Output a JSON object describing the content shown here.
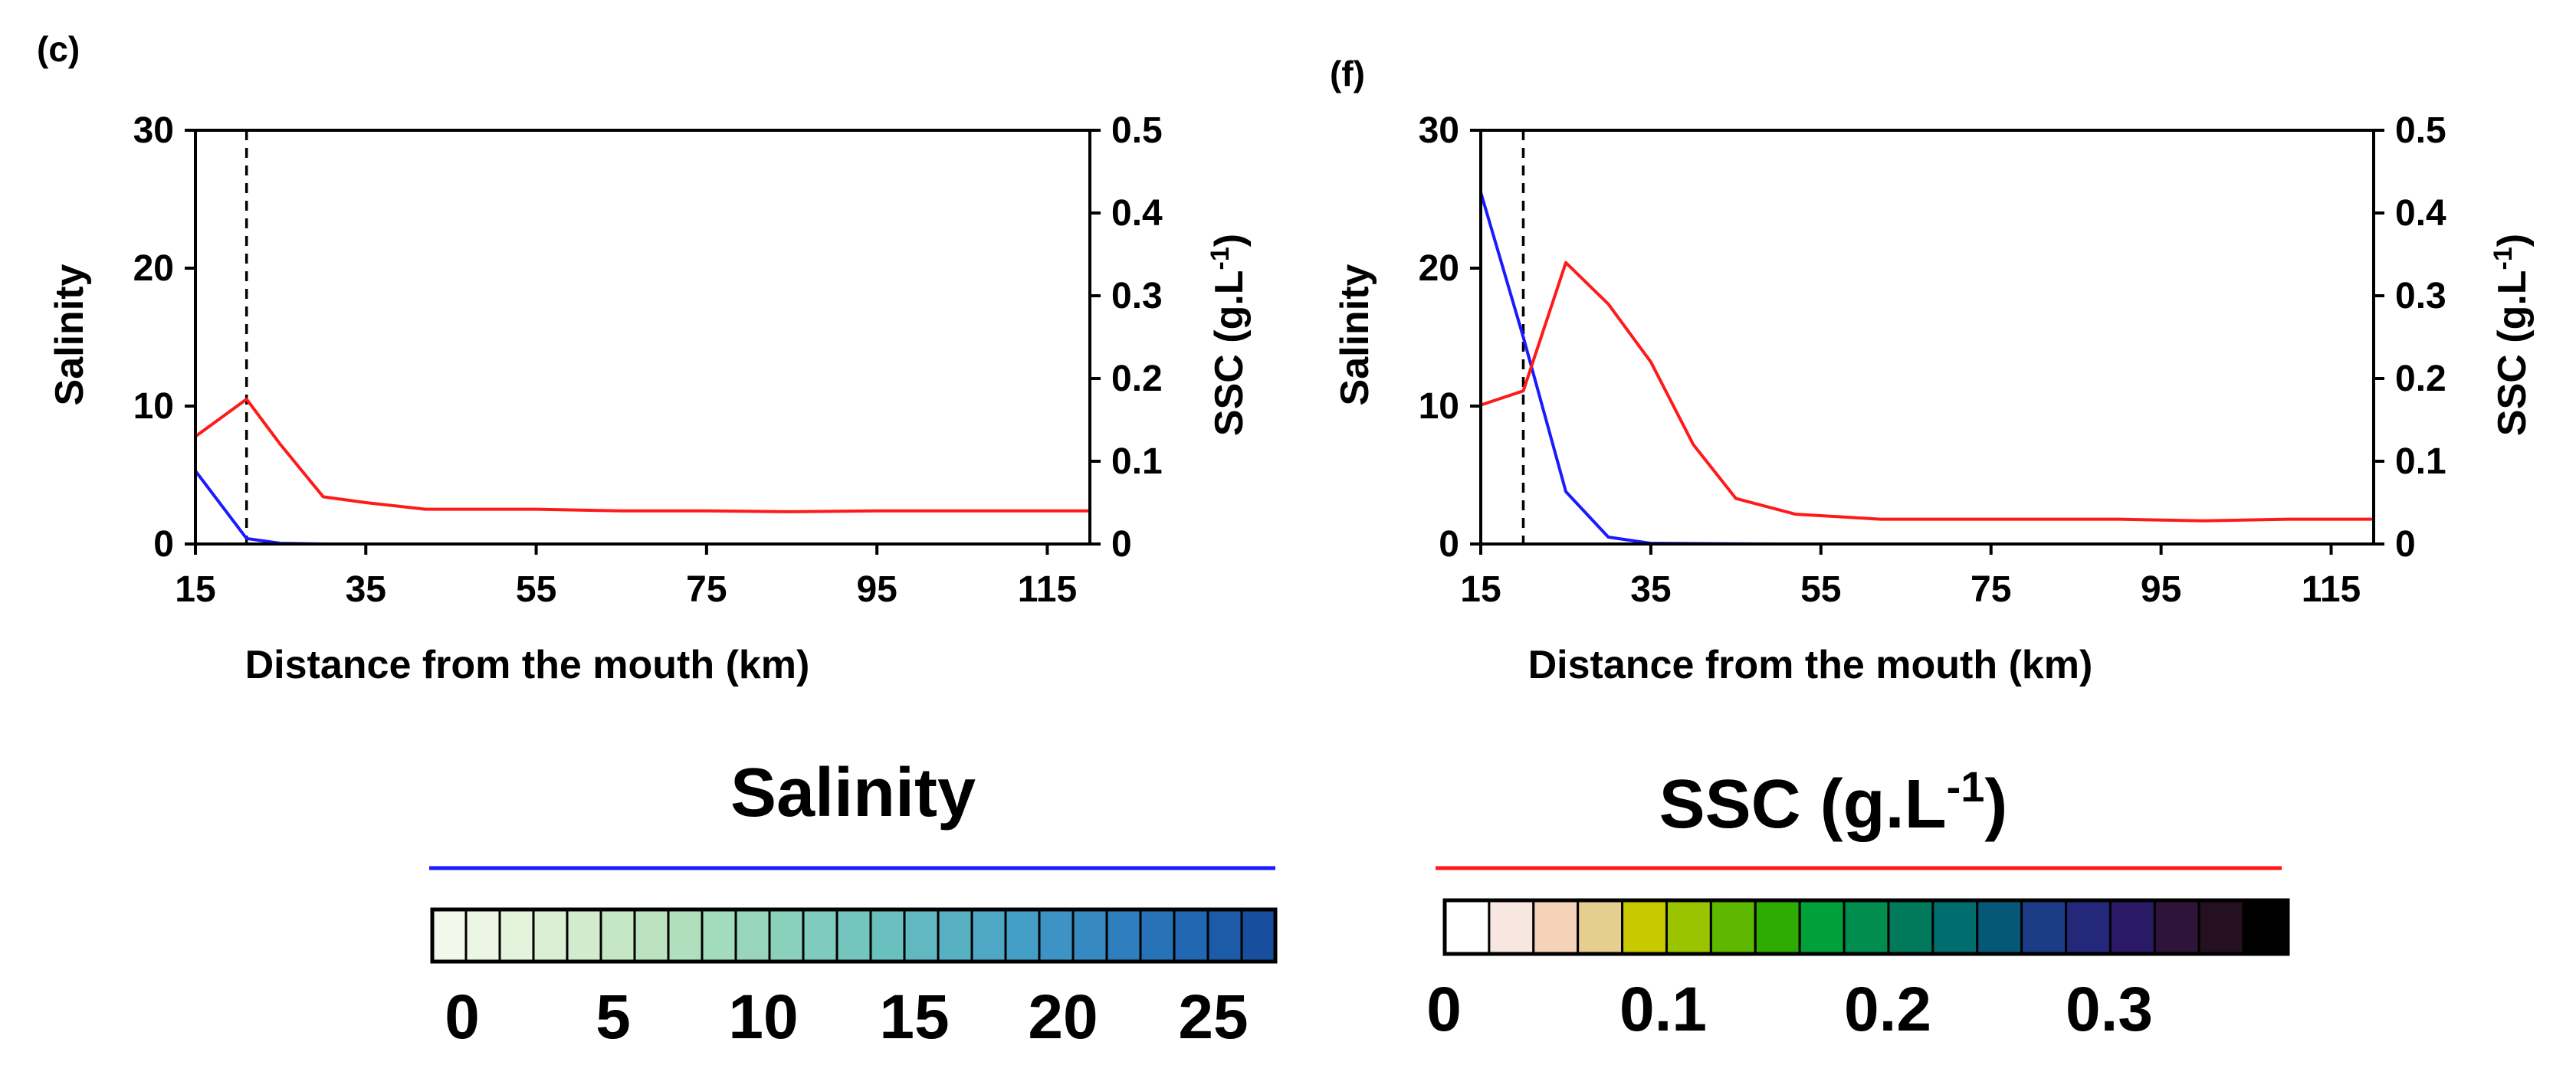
{
  "chart_data": [
    {
      "panel": "(c)",
      "type": "line",
      "xlabel": "Distance from the mouth (km)",
      "ylabel_left": "Salinity",
      "ylabel_right": "SSC (g.L",
      "ylabel_right_sup": "-1",
      "ylabel_right_suffix": ")",
      "xlim": [
        15,
        120
      ],
      "xticks": [
        "15",
        "35",
        "55",
        "75",
        "95",
        "115"
      ],
      "ylim_left": [
        0,
        30
      ],
      "yticks_left": [
        "0",
        "10",
        "20",
        "30"
      ],
      "ylim_right": [
        0,
        0.5
      ],
      "yticks_right": [
        "0",
        "0.1",
        "0.2",
        "0.3",
        "0.4",
        "0.5"
      ],
      "vline_x": 21,
      "series": [
        {
          "name": "Salinity",
          "axis": "left",
          "color": "#1a1aff",
          "x": [
            15,
            21,
            25,
            30,
            40,
            60,
            80,
            100,
            120
          ],
          "y": [
            5.3,
            0.4,
            0.05,
            0,
            0,
            0,
            0,
            0,
            0
          ]
        },
        {
          "name": "SSC (g.L-1)",
          "axis": "right",
          "color": "#ff1a1a",
          "x": [
            15,
            21,
            25,
            30,
            35,
            42,
            55,
            65,
            75,
            85,
            95,
            105,
            120
          ],
          "y": [
            0.13,
            0.175,
            0.12,
            0.057,
            0.05,
            0.042,
            0.042,
            0.04,
            0.04,
            0.039,
            0.04,
            0.04,
            0.04
          ]
        }
      ]
    },
    {
      "panel": "(f)",
      "type": "line",
      "xlabel": "Distance from the mouth (km)",
      "ylabel_left": "Salinity",
      "ylabel_right": "SSC (g.L",
      "ylabel_right_sup": "-1",
      "ylabel_right_suffix": ")",
      "xlim": [
        15,
        120
      ],
      "xticks": [
        "15",
        "35",
        "55",
        "75",
        "95",
        "115"
      ],
      "ylim_left": [
        0,
        30
      ],
      "yticks_left": [
        "0",
        "10",
        "20",
        "30"
      ],
      "ylim_right": [
        0,
        0.5
      ],
      "yticks_right": [
        "0",
        "0.1",
        "0.2",
        "0.3",
        "0.4",
        "0.5"
      ],
      "vline_x": 20,
      "series": [
        {
          "name": "Salinity",
          "axis": "left",
          "color": "#1a1aff",
          "x": [
            15,
            20,
            25,
            30,
            35,
            50,
            70,
            90,
            120
          ],
          "y": [
            25.5,
            15,
            3.8,
            0.5,
            0.05,
            0,
            0,
            0,
            0
          ]
        },
        {
          "name": "SSC (g.L-1)",
          "axis": "right",
          "color": "#ff1a1a",
          "x": [
            15,
            20,
            25,
            30,
            35,
            40,
            45,
            52,
            62,
            75,
            90,
            100,
            110,
            120
          ],
          "y": [
            0.168,
            0.185,
            0.34,
            0.29,
            0.22,
            0.12,
            0.055,
            0.036,
            0.03,
            0.03,
            0.03,
            0.028,
            0.03,
            0.03
          ]
        }
      ]
    }
  ],
  "legends": {
    "salinity": {
      "title": "Salinity",
      "line_color": "#1a1aff",
      "labels": [
        "0",
        "5",
        "10",
        "15",
        "20",
        "25"
      ],
      "colors": [
        "#f2f9ec",
        "#ebf6e4",
        "#e3f3dc",
        "#daefd4",
        "#d1ebcc",
        "#c6e7c4",
        "#bce3bf",
        "#b0dfbe",
        "#a3dbbd",
        "#97d6bc",
        "#8ad1bc",
        "#7fcbbd",
        "#74c5be",
        "#6abfbf",
        "#61b8c1",
        "#58b1c3",
        "#4ea8c5",
        "#459ec6",
        "#3d93c4",
        "#3689c1",
        "#2f7ebd",
        "#2873b8",
        "#2267b1",
        "#1c5ba8",
        "#174f9e"
      ]
    },
    "ssc": {
      "title": "SSC (g.L",
      "title_sup": "-1",
      "title_suffix": ")",
      "line_color": "#ff1a1a",
      "labels": [
        "0",
        "0.1",
        "0.2",
        "0.3"
      ],
      "colors": [
        "#ffffff",
        "#f8e6e0",
        "#f5d3b8",
        "#e6ce90",
        "#c9c900",
        "#9ac400",
        "#5eb800",
        "#2eab00",
        "#00a03a",
        "#008d4e",
        "#007a5a",
        "#006e6e",
        "#065878",
        "#1c3c88",
        "#23287a",
        "#2a1a66",
        "#2d1438",
        "#241020",
        "#000000"
      ]
    }
  }
}
